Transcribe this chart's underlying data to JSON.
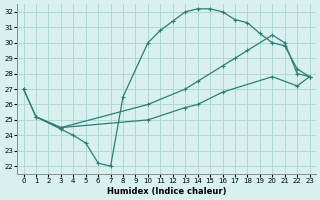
{
  "xlabel": "Humidex (Indice chaleur)",
  "bg_color": "#d8f0ee",
  "grid_color": "#b0d8d4",
  "line_color": "#2d7f75",
  "xlim": [
    -0.5,
    23.5
  ],
  "ylim": [
    21.5,
    32.5
  ],
  "xticks": [
    0,
    1,
    2,
    3,
    4,
    5,
    6,
    7,
    8,
    9,
    10,
    11,
    12,
    13,
    14,
    15,
    16,
    17,
    18,
    19,
    20,
    21,
    22,
    23
  ],
  "yticks": [
    22,
    23,
    24,
    25,
    26,
    27,
    28,
    29,
    30,
    31,
    32
  ],
  "curve1_x": [
    0,
    1,
    3,
    4,
    5,
    6,
    7,
    8,
    10,
    11,
    12,
    13,
    14,
    15,
    16,
    17,
    18,
    19,
    20,
    21,
    22,
    23
  ],
  "curve1_y": [
    27.0,
    25.2,
    24.4,
    24.0,
    23.5,
    22.2,
    22.0,
    26.5,
    30.0,
    30.8,
    31.4,
    32.0,
    32.2,
    32.2,
    32.0,
    31.5,
    31.3,
    30.6,
    30.0,
    29.8,
    28.3,
    27.8
  ],
  "curve2_x": [
    0,
    1,
    3,
    10,
    13,
    14,
    16,
    17,
    18,
    20,
    21,
    22,
    23
  ],
  "curve2_y": [
    27.0,
    25.2,
    24.5,
    26.0,
    27.0,
    27.5,
    28.5,
    29.0,
    29.5,
    30.5,
    30.0,
    28.0,
    27.8
  ],
  "curve3_x": [
    1,
    3,
    10,
    13,
    14,
    16,
    20,
    22,
    23
  ],
  "curve3_y": [
    25.2,
    24.5,
    25.0,
    25.8,
    26.0,
    26.8,
    27.8,
    27.2,
    27.8
  ]
}
